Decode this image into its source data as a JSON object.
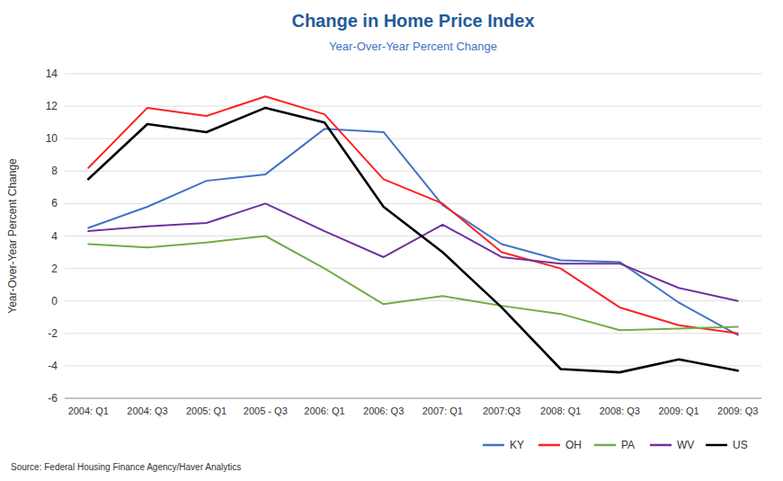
{
  "chart_data": {
    "type": "line",
    "title": "Change in Home Price Index",
    "subtitle": "Year-Over-Year Percent Change",
    "y_label": "Year-Over-Year Percent Change",
    "source": "Source: Federal Housing Finance Agency/Haver Analytics",
    "categories": [
      "2004: Q1",
      "2004: Q3",
      "2005: Q1",
      "2005 - Q3",
      "2006: Q1",
      "2006: Q3",
      "2007: Q1",
      "2007:Q3",
      "2008: Q1",
      "2008: Q3",
      "2009: Q1",
      "2009: Q3"
    ],
    "series": [
      {
        "name": "KY",
        "color": "#4472C4",
        "values": [
          4.5,
          5.8,
          7.4,
          7.8,
          10.6,
          10.4,
          5.9,
          3.5,
          2.5,
          2.4,
          -0.1,
          -2.1
        ]
      },
      {
        "name": "OH",
        "color": "#FF2020",
        "values": [
          8.2,
          11.9,
          11.4,
          12.6,
          11.5,
          7.5,
          6.0,
          3.0,
          2.0,
          -0.4,
          -1.5,
          -2.0
        ]
      },
      {
        "name": "PA",
        "color": "#70AD47",
        "values": [
          3.5,
          3.3,
          3.6,
          4.0,
          2.0,
          -0.2,
          0.3,
          -0.3,
          -0.8,
          -1.8,
          -1.7,
          -1.6
        ]
      },
      {
        "name": "WV",
        "color": "#7030A0",
        "values": [
          4.3,
          4.6,
          4.8,
          6.0,
          4.3,
          2.7,
          4.7,
          2.7,
          2.3,
          2.3,
          0.8,
          0.0
        ]
      },
      {
        "name": "US",
        "color": "#000000",
        "values": [
          7.5,
          10.9,
          10.4,
          11.9,
          11.0,
          5.8,
          3.0,
          -0.4,
          -4.2,
          -4.4,
          -3.6,
          -4.3
        ]
      }
    ],
    "ylim": [
      -6,
      14
    ],
    "yticks": [
      -6,
      -4,
      -2,
      0,
      2,
      4,
      6,
      8,
      10,
      12,
      14
    ],
    "grid": true,
    "legend": "lower right"
  }
}
